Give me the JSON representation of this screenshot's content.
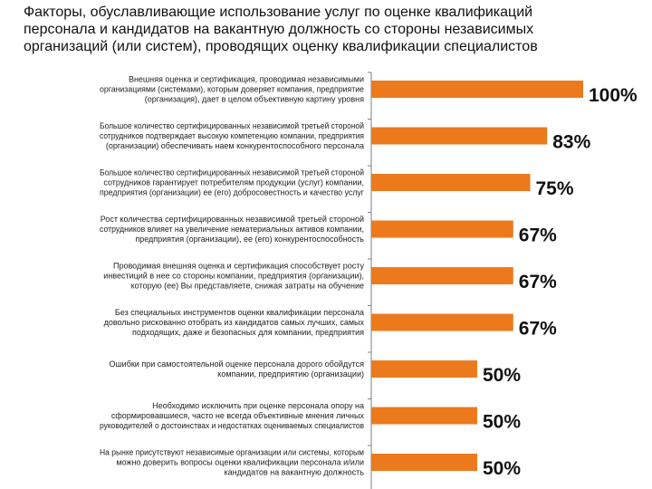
{
  "title": {
    "lines": [
      "Факторы, обуславливающие использование услуг по оценке квалификаций",
      "персонала и кандидатов на вакантную должность со стороны независимых",
      "организаций (или систем), проводящих оценку квалификации специалистов"
    ]
  },
  "colors": {
    "bar": "#ec7a1c",
    "axis": "#7f7f7f"
  },
  "chart_data": {
    "type": "bar",
    "orientation": "horizontal",
    "title": "Факторы, обуславливающие использование услуг по оценке квалификаций персонала и кандидатов на вакантную должность со стороны независимых организаций (или систем), проводящих оценку квалификации специалистов",
    "xlim": [
      0,
      100
    ],
    "unit": "%",
    "categories": [
      [
        "Внешняя оценка и сертификация, проводимая независимыми",
        "организациями (системами), которым доверяет компания, предприятие",
        "(организация), дает в целом объективную картину уровня"
      ],
      [
        "Большое количество сертифицированных независимой третьей стороной",
        "сотрудников подтверждает высокую компетенцию компании, предприятия",
        "(организации) обеспечивать наем конкурентоспособного персонала"
      ],
      [
        "Большое количество сертифицированных независимой третьей стороной",
        "сотрудников гарантирует потребителям продукции (услуг) компании,",
        "предприятия (организации) ее (его) добросовестность и качество услуг"
      ],
      [
        "Рост количества сертифицированных независимой третьей стороной",
        "сотрудников влияет на увеличение нематериальных активов компании,",
        "предприятия (организации), ее (его) конкурентоспособность"
      ],
      [
        "Проводимая внешняя оценка и сертификация способствует росту",
        "инвестиций в нее со стороны компании, предприятия (организации),",
        "которую (ее) Вы представляете, снижая затраты на обучение"
      ],
      [
        "Без специальных инструментов оценки квалификации персонала",
        "довольно рискованно отобрать из кандидатов самых лучших, самых",
        "подходящих, даже и безопасных для компании, предприятия"
      ],
      [
        "Ошибки при самостоятельной оценке персонала дорого обойдутся",
        "компании, предприятию (организации)"
      ],
      [
        "Необходимо исключить при оценке персонала опору на",
        "сформировавшиеся, часто не всегда объективные мнения личных",
        "руководителей о достоинствах и недостатках оцениваемых специалистов"
      ],
      [
        "На рынке присутствуют независимые организации или системы, которым",
        "можно доверить вопросы оценки квалификации персонала и/или",
        "кандидатов на вакантную должность"
      ]
    ],
    "values": [
      100,
      83,
      75,
      67,
      67,
      67,
      50,
      50,
      50
    ],
    "value_labels": [
      "100%",
      "83%",
      "75%",
      "67%",
      "67%",
      "67%",
      "50%",
      "50%",
      "50%"
    ]
  }
}
